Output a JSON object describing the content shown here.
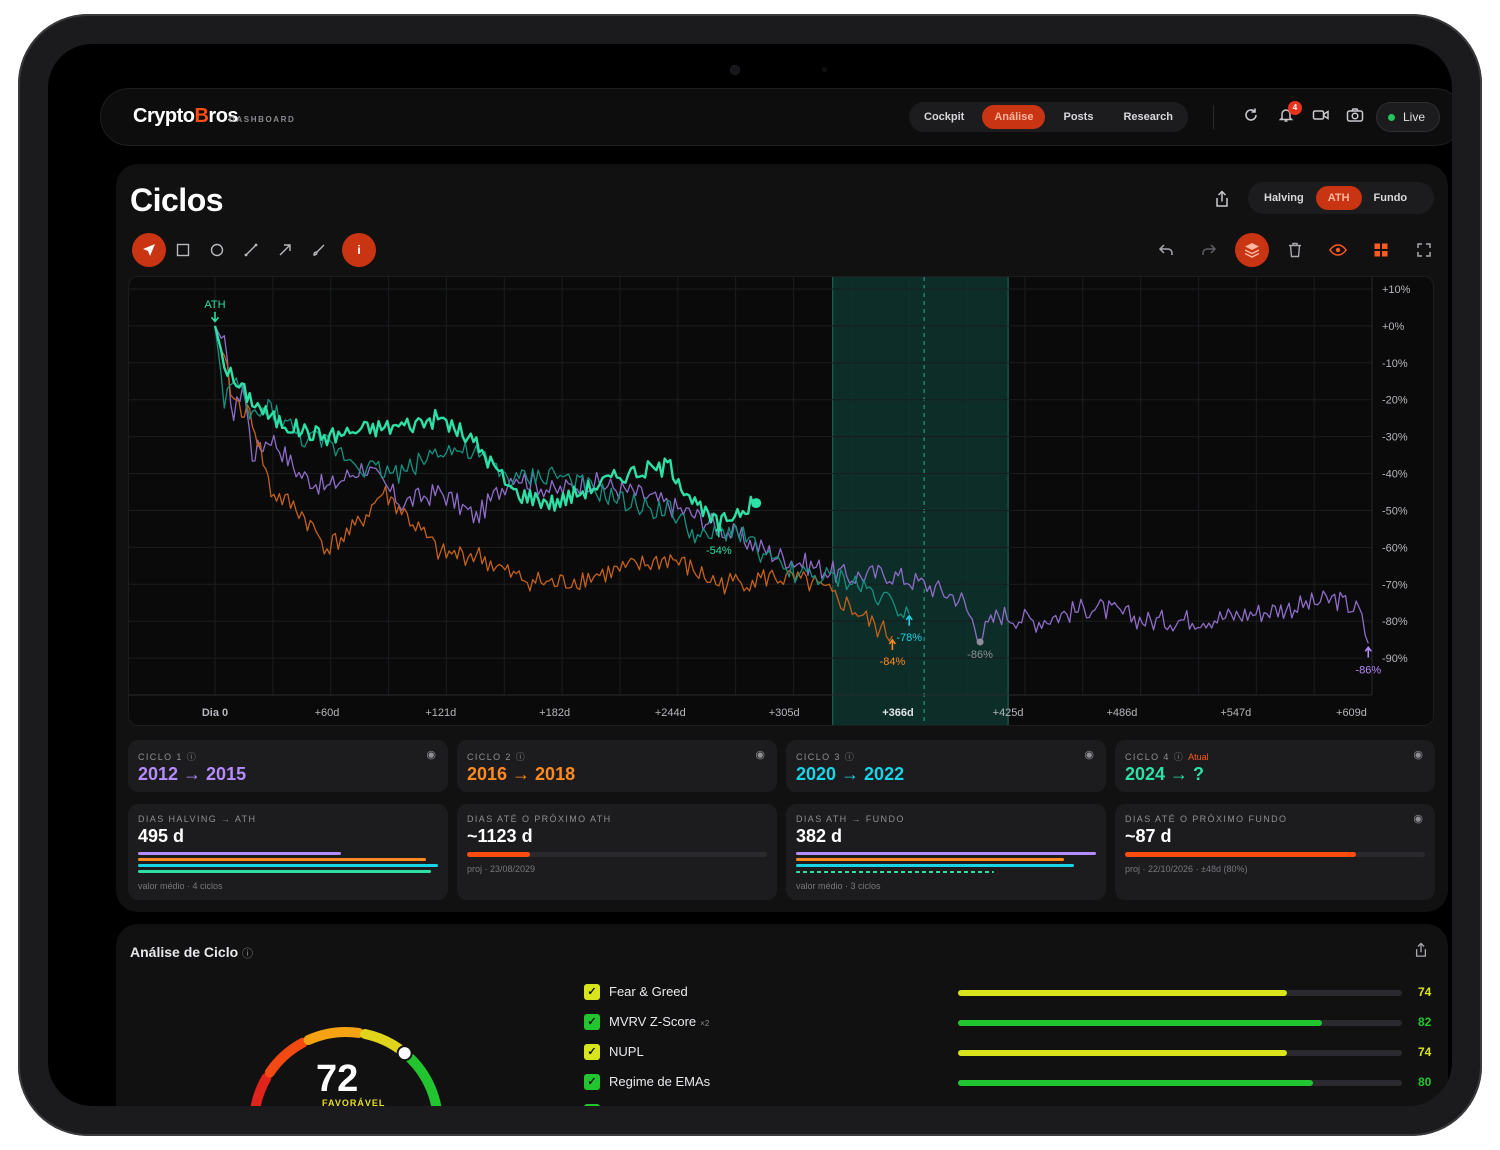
{
  "header": {
    "logo_main_a": "Crypto",
    "logo_main_b": "B",
    "logo_main_c": "ros",
    "logo_sub": "DASHBOARD",
    "nav": [
      "Cockpit",
      "Análise",
      "Posts",
      "Research"
    ],
    "nav_active": "Análise",
    "notification_count": "4",
    "live_label": "Live",
    "icons": [
      "refresh-icon",
      "bell-icon",
      "video-icon",
      "camera-icon"
    ]
  },
  "main": {
    "title": "Ciclos",
    "modes": [
      "Halving",
      "ATH",
      "Fundo"
    ],
    "mode_active": "ATH"
  },
  "chart_data": {
    "type": "line",
    "x_unit": "days since ATH",
    "x_ticks": [
      "Dia 0",
      "+60d",
      "+121d",
      "+182d",
      "+244d",
      "+305d",
      "+366d",
      "+425d",
      "+486d",
      "+547d",
      "+609d"
    ],
    "y_ticks": [
      "+10%",
      "+0%",
      "-10%",
      "-20%",
      "-30%",
      "-40%",
      "-50%",
      "-60%",
      "-70%",
      "-80%",
      "-90%"
    ],
    "ylim": [
      -100,
      10
    ],
    "highlight_band_days": [
      331,
      425
    ],
    "highlight_marker_day": 380,
    "ath_label": "ATH",
    "series": [
      {
        "name": "2012 → 2015",
        "color": "#8e6cc7",
        "x": [
          0,
          5,
          10,
          15,
          20,
          30,
          45,
          60,
          80,
          100,
          121,
          140,
          160,
          182,
          200,
          230,
          260,
          300,
          340,
          360,
          380,
          400,
          410,
          420,
          440,
          470,
          500,
          540,
          580,
          600,
          613,
          618
        ],
        "y": [
          0,
          -5,
          -25,
          -15,
          -35,
          -30,
          -40,
          -44,
          -38,
          -48,
          -45,
          -52,
          -40,
          -45,
          -42,
          -46,
          -52,
          -62,
          -68,
          -67,
          -70,
          -74,
          -84,
          -78,
          -80,
          -76,
          -80,
          -79,
          -76,
          -74,
          -77,
          -86
        ],
        "end_label": "-86%"
      },
      {
        "name": "2016 → 2018",
        "color": "#c4611a",
        "x": [
          0,
          5,
          10,
          20,
          30,
          45,
          60,
          75,
          90,
          100,
          121,
          140,
          160,
          182,
          200,
          220,
          244,
          270,
          300,
          320,
          340,
          355,
          363
        ],
        "y": [
          0,
          -10,
          -20,
          -25,
          -45,
          -50,
          -60,
          -55,
          -45,
          -50,
          -62,
          -62,
          -68,
          -70,
          -68,
          -66,
          -63,
          -70,
          -68,
          -70,
          -76,
          -82,
          -84
        ],
        "end_label": "-84%"
      },
      {
        "name": "2020 → 2022",
        "color": "#13917f",
        "x": [
          0,
          5,
          10,
          20,
          30,
          45,
          60,
          80,
          100,
          121,
          140,
          160,
          182,
          200,
          220,
          244,
          260,
          280,
          300,
          320,
          340,
          360,
          372
        ],
        "y": [
          0,
          -20,
          -15,
          -25,
          -22,
          -30,
          -32,
          -38,
          -40,
          -33,
          -35,
          -42,
          -40,
          -44,
          -48,
          -50,
          -58,
          -55,
          -65,
          -68,
          -69,
          -74,
          -78
        ],
        "end_label": "-78%"
      },
      {
        "name": "2024 → ?",
        "color": "#2de0a6",
        "x": [
          0,
          5,
          10,
          20,
          30,
          45,
          60,
          80,
          100,
          121,
          140,
          160,
          182,
          200,
          220,
          244,
          260,
          270,
          280,
          290
        ],
        "y": [
          0,
          -10,
          -15,
          -20,
          -25,
          -28,
          -30,
          -28,
          -27,
          -25,
          -32,
          -45,
          -48,
          -44,
          -40,
          -38,
          -50,
          -54,
          -50,
          -48
        ],
        "end_label": "-54%"
      }
    ]
  },
  "cycles": [
    {
      "label": "CICLO 1",
      "range": "2012 → 2015",
      "color": "#b58cff",
      "atual": ""
    },
    {
      "label": "CICLO 2",
      "range": "2016 → 2018",
      "color": "#ff8a1f",
      "atual": ""
    },
    {
      "label": "CICLO 3",
      "range": "2020 → 2022",
      "color": "#19d3e6",
      "atual": ""
    },
    {
      "label": "CICLO 4",
      "range": "2024 → ?",
      "color": "#2de0a6",
      "atual": "Atual"
    }
  ],
  "stats": [
    {
      "label": "DIAS HALVING → ATH",
      "value": "495 d",
      "note": "valor médio · 4 ciclos"
    },
    {
      "label": "DIAS ATÉ O PRÓXIMO ATH",
      "value": "~1123 d",
      "note": "proj · 23/08/2029",
      "progress": 0.21
    },
    {
      "label": "DIAS ATH → FUNDO",
      "value": "382 d",
      "note": "valor médio · 3 ciclos"
    },
    {
      "label": "DIAS ATÉ O PRÓXIMO FUNDO",
      "value": "~87 d",
      "note": "proj · 22/10/2026 · ±48d (80%)",
      "progress": 0.77
    }
  ],
  "analysis": {
    "title": "Análise de Ciclo",
    "score": "72",
    "score_label": "FAVORÁVEL",
    "metrics": [
      {
        "name": "Fear & Greed",
        "mult": "",
        "value": "74",
        "fraction": 0.74,
        "color": "#d8e51c"
      },
      {
        "name": "MVRV Z-Score",
        "mult": "×2",
        "value": "82",
        "fraction": 0.82,
        "color": "#22c42f"
      },
      {
        "name": "NUPL",
        "mult": "",
        "value": "74",
        "fraction": 0.74,
        "color": "#d8e51c"
      },
      {
        "name": "Regime de EMAs",
        "mult": "",
        "value": "80",
        "fraction": 0.8,
        "color": "#22c42f"
      }
    ]
  }
}
